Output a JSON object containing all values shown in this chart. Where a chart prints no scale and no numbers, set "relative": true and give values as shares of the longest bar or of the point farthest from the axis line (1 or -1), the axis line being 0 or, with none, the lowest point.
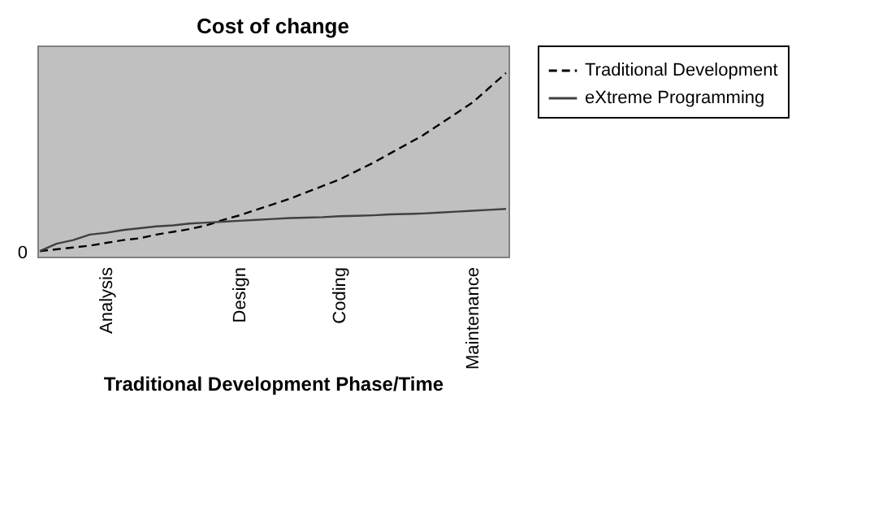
{
  "chart_data": {
    "type": "line",
    "title": "Cost of change",
    "xlabel": "Traditional Development Phase/Time",
    "relative": true,
    "categories": [
      null,
      null,
      null,
      null,
      "Analysis",
      null,
      null,
      null,
      null,
      null,
      null,
      null,
      "Design",
      null,
      null,
      null,
      null,
      null,
      "Coding",
      null,
      null,
      null,
      null,
      null,
      null,
      null,
      "Maintenance",
      null,
      null
    ],
    "annotations": [
      "0"
    ],
    "series": [
      {
        "name": "Traditional Development",
        "color": "#000000",
        "line_style": "dashed",
        "values": [
          0.03,
          0.04,
          0.05,
          0.06,
          0.075,
          0.09,
          0.1,
          0.12,
          0.135,
          0.15,
          0.17,
          0.2,
          0.225,
          0.255,
          0.285,
          0.315,
          0.35,
          0.385,
          0.42,
          0.465,
          0.51,
          0.56,
          0.61,
          0.66,
          0.72,
          0.78,
          0.84,
          0.92,
          1
        ]
      },
      {
        "name": "eXtreme Programming",
        "color": "#404040",
        "line_style": "solid",
        "values": [
          0.03,
          0.07,
          0.09,
          0.12,
          0.13,
          0.145,
          0.155,
          0.165,
          0.17,
          0.18,
          0.185,
          0.19,
          0.195,
          0.2,
          0.205,
          0.21,
          0.212,
          0.215,
          0.22,
          0.222,
          0.225,
          0.23,
          0.232,
          0.235,
          0.24,
          0.245,
          0.25,
          0.255,
          0.26
        ]
      }
    ],
    "legend": "right",
    "grid": false
  }
}
